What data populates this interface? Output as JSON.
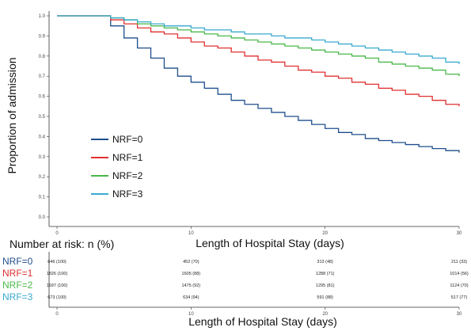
{
  "chart_data": {
    "type": "line",
    "title": "",
    "xlabel": "Length of Hospital Stay (days)",
    "ylabel": "Proportion of admission",
    "xlim": [
      0,
      30
    ],
    "ylim": [
      0,
      1.0
    ],
    "x_ticks": [
      "0",
      "10",
      "20",
      "30"
    ],
    "y_ticks": [
      "0.0",
      "0.1",
      "0.2",
      "0.3",
      "0.4",
      "0.5",
      "0.6",
      "0.7",
      "0.8",
      "0.9",
      "1.0"
    ],
    "grid": false,
    "legend_position": "left-center",
    "series": [
      {
        "name": "NRF=0",
        "color": "#1f4e8c",
        "x": [
          0,
          4,
          5,
          6,
          7,
          8,
          9,
          10,
          11,
          12,
          13,
          14,
          15,
          16,
          17,
          18,
          19,
          20,
          21,
          22,
          23,
          24,
          25,
          26,
          27,
          28,
          29,
          30
        ],
        "y": [
          1.0,
          0.95,
          0.89,
          0.84,
          0.79,
          0.74,
          0.7,
          0.67,
          0.64,
          0.61,
          0.58,
          0.56,
          0.54,
          0.52,
          0.5,
          0.48,
          0.46,
          0.44,
          0.42,
          0.41,
          0.39,
          0.38,
          0.37,
          0.36,
          0.35,
          0.34,
          0.33,
          0.32
        ]
      },
      {
        "name": "NRF=1",
        "color": "#e03030",
        "x": [
          0,
          4,
          5,
          6,
          7,
          8,
          9,
          10,
          11,
          12,
          13,
          14,
          15,
          16,
          17,
          18,
          19,
          20,
          21,
          22,
          23,
          24,
          25,
          26,
          27,
          28,
          29,
          30
        ],
        "y": [
          1.0,
          0.98,
          0.96,
          0.94,
          0.92,
          0.91,
          0.89,
          0.87,
          0.85,
          0.84,
          0.82,
          0.8,
          0.78,
          0.77,
          0.75,
          0.73,
          0.72,
          0.7,
          0.69,
          0.67,
          0.66,
          0.64,
          0.63,
          0.61,
          0.6,
          0.58,
          0.56,
          0.55
        ]
      },
      {
        "name": "NRF=2",
        "color": "#4ab84a",
        "x": [
          0,
          4,
          5,
          6,
          7,
          8,
          9,
          10,
          11,
          12,
          13,
          14,
          15,
          16,
          17,
          18,
          19,
          20,
          21,
          22,
          23,
          24,
          25,
          26,
          27,
          28,
          29,
          30
        ],
        "y": [
          1.0,
          0.99,
          0.98,
          0.96,
          0.95,
          0.94,
          0.93,
          0.92,
          0.91,
          0.9,
          0.89,
          0.88,
          0.87,
          0.86,
          0.85,
          0.84,
          0.83,
          0.82,
          0.81,
          0.8,
          0.79,
          0.77,
          0.76,
          0.75,
          0.74,
          0.73,
          0.71,
          0.7
        ]
      },
      {
        "name": "NRF=3",
        "color": "#3aa9d0",
        "x": [
          0,
          4,
          5,
          6,
          7,
          8,
          9,
          10,
          11,
          12,
          13,
          14,
          15,
          16,
          17,
          18,
          19,
          20,
          21,
          22,
          23,
          24,
          25,
          26,
          27,
          28,
          29,
          30
        ],
        "y": [
          1.0,
          0.99,
          0.98,
          0.97,
          0.96,
          0.95,
          0.95,
          0.94,
          0.93,
          0.93,
          0.92,
          0.91,
          0.91,
          0.9,
          0.89,
          0.89,
          0.88,
          0.87,
          0.86,
          0.85,
          0.84,
          0.83,
          0.82,
          0.81,
          0.8,
          0.79,
          0.77,
          0.76
        ]
      }
    ]
  },
  "risk_table": {
    "heading": "Number at risk: n (%)",
    "xlabel": "Length of Hospital Stay (days)",
    "x_ticks": [
      "0",
      "10",
      "20",
      "30"
    ],
    "rows": [
      {
        "group": "NRF=0",
        "color": "#1f4e8c",
        "cells": [
          "646 (100)",
          "452 (70)",
          "313 (48)",
          "211 (33)"
        ]
      },
      {
        "group": "NRF=1",
        "color": "#e03030",
        "cells": [
          "1826 (100)",
          "1605 (88)",
          "1288 (71)",
          "1014 (56)"
        ]
      },
      {
        "group": "NRF=2",
        "color": "#4ab84a",
        "cells": [
          "1597 (100)",
          "1475 (92)",
          "1295 (81)",
          "1124 (70)"
        ]
      },
      {
        "group": "NRF=3",
        "color": "#3aa9d0",
        "cells": [
          "673 (100)",
          "634 (94)",
          "591 (88)",
          "517 (77)"
        ]
      }
    ]
  }
}
